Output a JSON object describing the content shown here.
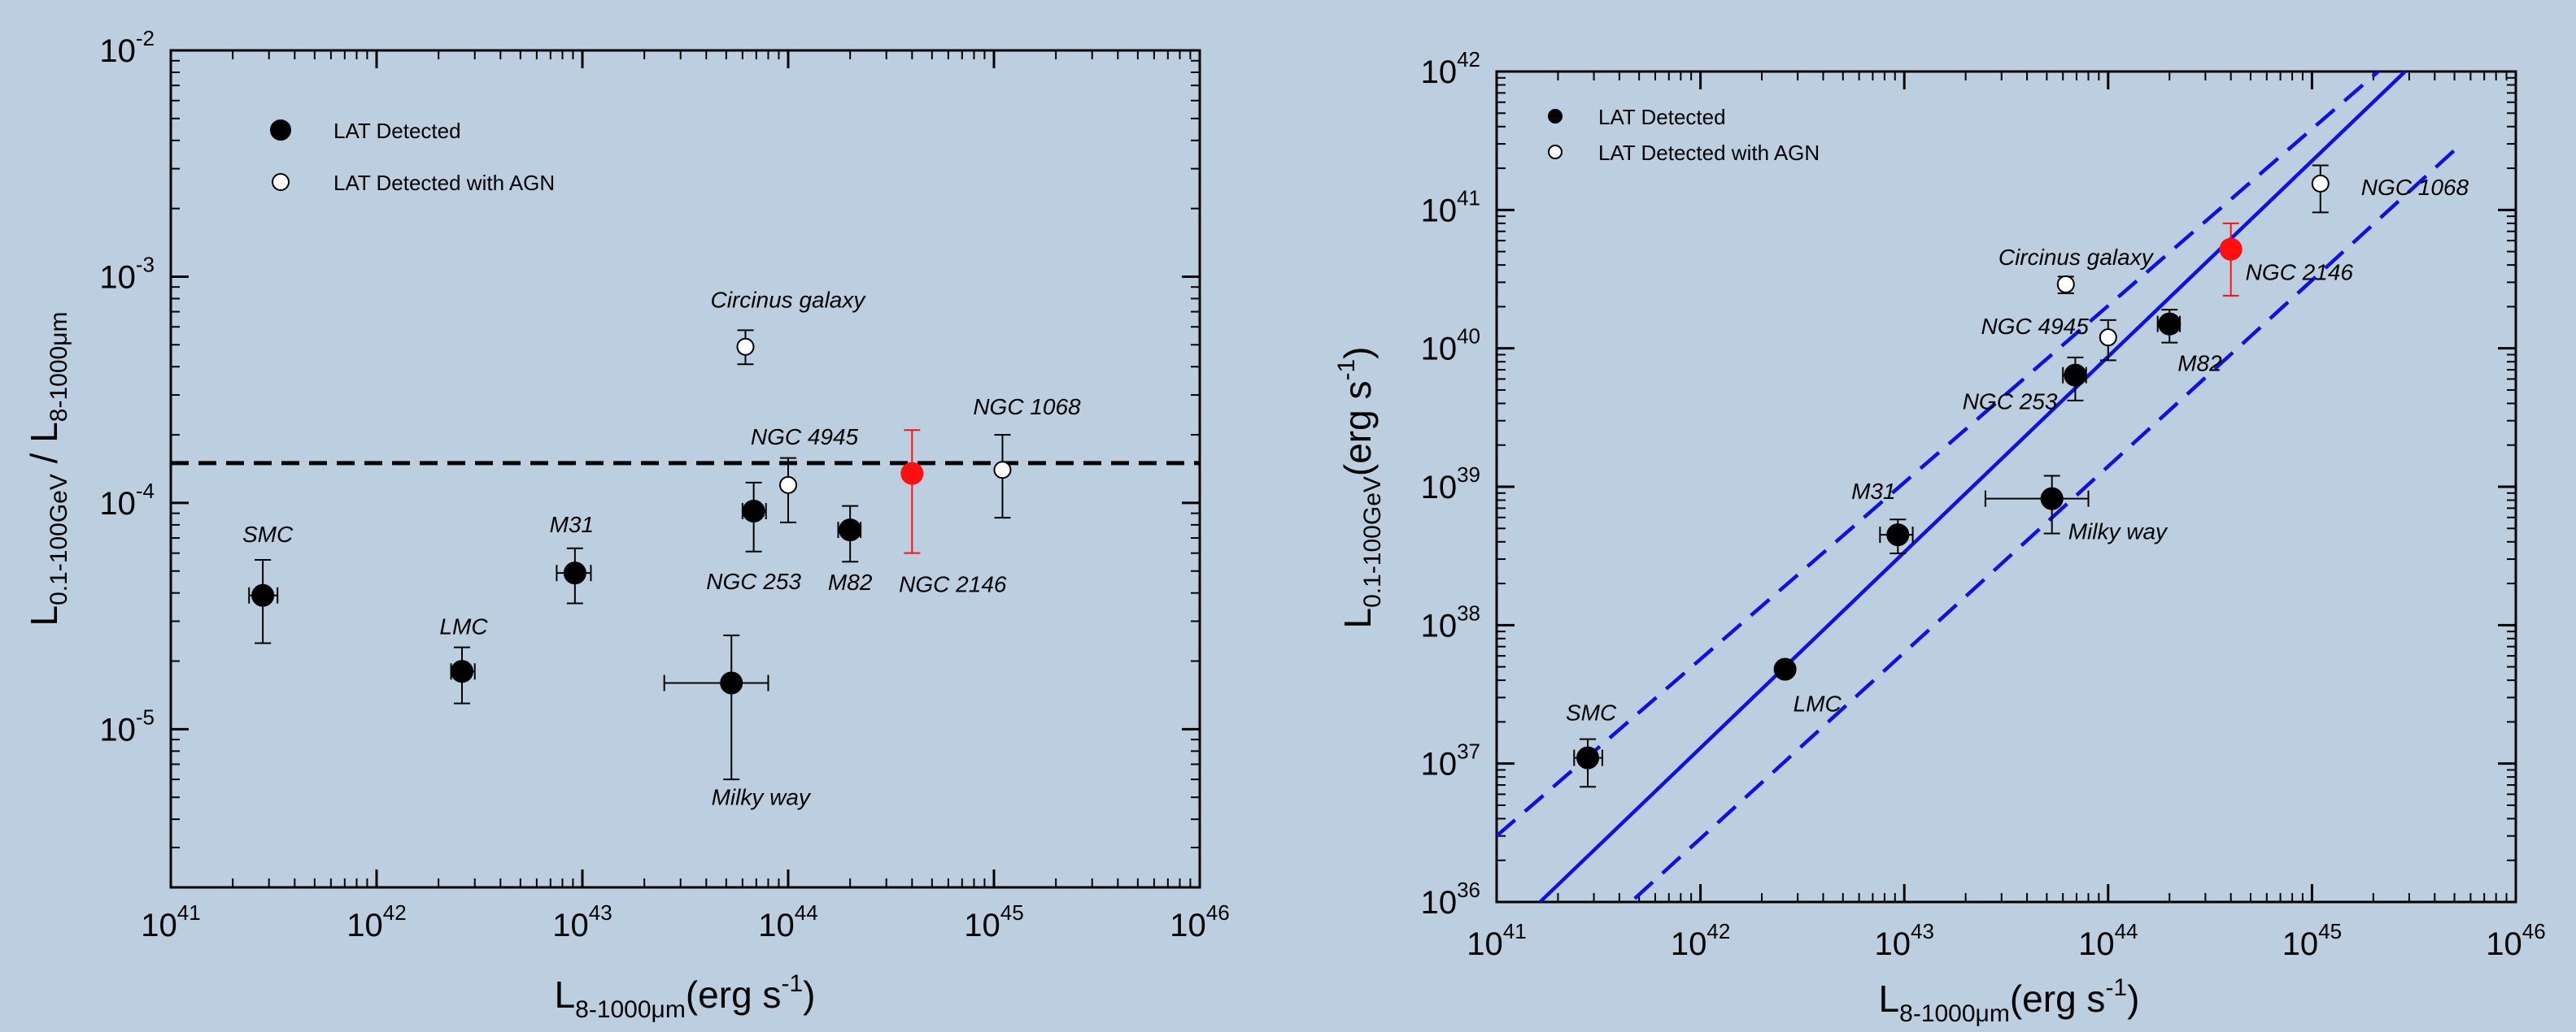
{
  "chart_data": [
    {
      "type": "scatter",
      "x_scale": "log",
      "y_scale": "log",
      "xlim": [
        1e+41,
        1e+46
      ],
      "ylim": [
        2e-06,
        0.01
      ],
      "x_tick_base": "10",
      "x_tick_exponents": [
        "41",
        "42",
        "43",
        "44",
        "45",
        "46"
      ],
      "y_tick_base": "10",
      "y_tick_exponents": [
        "-2",
        "-3",
        "-4",
        "-5"
      ],
      "xlabel": {
        "main": "L",
        "sub": "8-1000μm",
        "unit": "(erg s",
        "unit_sup": "-1",
        "unit_end": ")"
      },
      "ylabel": {
        "main1": "L",
        "sub1": "0.1-100GeV",
        "slash": " / L",
        "sub2": "8-1000μm"
      },
      "legend": {
        "placement": "top-left",
        "items": [
          {
            "label": "LAT Detected",
            "marker": "filled"
          },
          {
            "label": "LAT Detected with AGN",
            "marker": "open"
          }
        ]
      },
      "reference_line": {
        "y": 0.00015,
        "style": "dashed"
      },
      "points": [
        {
          "name": "SMC",
          "x": 2.8e+41,
          "y": 3.9e-05,
          "x_err": [
            2.4e+41,
            3.3e+41
          ],
          "y_err": [
            2.4e-05,
            5.6e-05
          ],
          "marker": "filled"
        },
        {
          "name": "LMC",
          "x": 2.6e+42,
          "y": 1.8e-05,
          "x_err": [
            2.3e+42,
            3e+42
          ],
          "y_err": [
            1.3e-05,
            2.3e-05
          ],
          "marker": "filled"
        },
        {
          "name": "M31",
          "x": 9.2e+42,
          "y": 4.9e-05,
          "x_err": [
            7.5e+42,
            1.1e+43
          ],
          "y_err": [
            3.6e-05,
            6.3e-05
          ],
          "marker": "filled"
        },
        {
          "name": "Milky way",
          "x": 5.3e+43,
          "y": 1.6e-05,
          "x_err": [
            2.5e+43,
            8e+43
          ],
          "y_err": [
            6e-06,
            2.6e-05
          ],
          "marker": "filled"
        },
        {
          "name": "NGC 253",
          "x": 6.8e+43,
          "y": 9.2e-05,
          "x_err": [
            6e+43,
            7.8e+43
          ],
          "y_err": [
            6.1e-05,
            0.000123
          ],
          "marker": "filled"
        },
        {
          "name": "M82",
          "x": 2e+44,
          "y": 7.6e-05,
          "x_err": [
            1.75e+44,
            2.25e+44
          ],
          "y_err": [
            5.5e-05,
            9.7e-05
          ],
          "marker": "filled"
        },
        {
          "name": "Circinus galaxy",
          "x": 6.2e+43,
          "y": 0.00049,
          "x_err": null,
          "y_err": [
            0.00041,
            0.00058
          ],
          "marker": "open"
        },
        {
          "name": "NGC 4945",
          "x": 1e+44,
          "y": 0.00012,
          "x_err": null,
          "y_err": [
            8.2e-05,
            0.000158
          ],
          "marker": "open"
        },
        {
          "name": "NGC 1068",
          "x": 1.1e+45,
          "y": 0.00014,
          "x_err": null,
          "y_err": [
            8.6e-05,
            0.0002
          ],
          "marker": "open"
        },
        {
          "name": "NGC 2146",
          "x": 4e+44,
          "y": 0.000135,
          "x_err": null,
          "y_err": [
            6e-05,
            0.00021
          ],
          "marker": "highlight"
        }
      ]
    },
    {
      "type": "scatter",
      "x_scale": "log",
      "y_scale": "log",
      "xlim": [
        1e+41,
        1e+46
      ],
      "ylim": [
        1e+36,
        1e+42
      ],
      "x_tick_base": "10",
      "x_tick_exponents": [
        "41",
        "42",
        "43",
        "44",
        "45",
        "46"
      ],
      "y_tick_base": "10",
      "y_tick_exponents": [
        "36",
        "37",
        "38",
        "39",
        "40",
        "41",
        "42"
      ],
      "xlabel": {
        "main": "L",
        "sub": "8-1000μm",
        "unit": "(erg s",
        "unit_sup": "-1",
        "unit_end": ")"
      },
      "ylabel": {
        "main": "L",
        "sub": "0.1-100GeV",
        "unit": "(erg s",
        "unit_sup": "-1",
        "unit_end": ")"
      },
      "legend": {
        "placement": "top-left",
        "items": [
          {
            "label": "LAT Detected",
            "marker": "filled"
          },
          {
            "label": "LAT Detected with AGN",
            "marker": "open"
          }
        ]
      },
      "fit_lines": [
        {
          "style": "solid",
          "points": [
            [
              1e+41,
              5e+35
            ],
            [
              5e+45,
              2.2e+42
            ]
          ]
        },
        {
          "style": "dashed",
          "points": [
            [
              1e+41,
              3e+36
            ],
            [
              5e+45,
              3e+42
            ]
          ]
        },
        {
          "style": "dashed",
          "points": [
            [
              1e+41,
              1.3e+35
            ],
            [
              5e+45,
              2.7e+41
            ]
          ]
        }
      ],
      "points": [
        {
          "name": "SMC",
          "x": 2.8e+41,
          "y": 1.1e+37,
          "x_err": [
            2.4e+41,
            3.3e+41
          ],
          "y_err": [
            6.8e+36,
            1.5e+37
          ],
          "marker": "filled"
        },
        {
          "name": "LMC",
          "x": 2.6e+42,
          "y": 4.8e+37,
          "x_err": null,
          "y_err": null,
          "marker": "filled"
        },
        {
          "name": "M31",
          "x": 9.3e+42,
          "y": 4.5e+38,
          "x_err": [
            7.6e+42,
            1.1e+43
          ],
          "y_err": [
            3.3e+38,
            5.8e+38
          ],
          "marker": "filled"
        },
        {
          "name": "Milky way",
          "x": 5.3e+43,
          "y": 8.2e+38,
          "x_err": [
            2.5e+43,
            8e+43
          ],
          "y_err": [
            4.6e+38,
            1.2e+39
          ],
          "marker": "filled"
        },
        {
          "name": "NGC 253",
          "x": 6.9e+43,
          "y": 6.4e+39,
          "x_err": [
            6e+43,
            7.8e+43
          ],
          "y_err": [
            4.2e+39,
            8.6e+39
          ],
          "marker": "filled"
        },
        {
          "name": "M82",
          "x": 2e+44,
          "y": 1.5e+40,
          "x_err": [
            1.75e+44,
            2.25e+44
          ],
          "y_err": [
            1.1e+40,
            1.9e+40
          ],
          "marker": "filled"
        },
        {
          "name": "Circinus galaxy",
          "x": 6.2e+43,
          "y": 2.9e+40,
          "x_err": null,
          "y_err": [
            2.5e+40,
            3.3e+40
          ],
          "marker": "open"
        },
        {
          "name": "NGC 4945",
          "x": 1e+44,
          "y": 1.2e+40,
          "x_err": null,
          "y_err": [
            8.2e+39,
            1.6e+40
          ],
          "marker": "open"
        },
        {
          "name": "NGC 1068",
          "x": 1.1e+45,
          "y": 1.55e+41,
          "x_err": null,
          "y_err": [
            9.6e+40,
            2.1e+41
          ],
          "marker": "open"
        },
        {
          "name": "NGC 2146",
          "x": 4e+44,
          "y": 5.2e+40,
          "x_err": null,
          "y_err": [
            2.4e+40,
            8e+40
          ],
          "marker": "highlight"
        }
      ]
    }
  ],
  "colors": {
    "background": "#bccfe0",
    "plot_background": "#bccfe0",
    "filled_marker": "#000000",
    "open_marker": "#ffffff",
    "highlight": "#ff1010",
    "fit_line": "#1010e0",
    "reference_line": "#000000"
  }
}
